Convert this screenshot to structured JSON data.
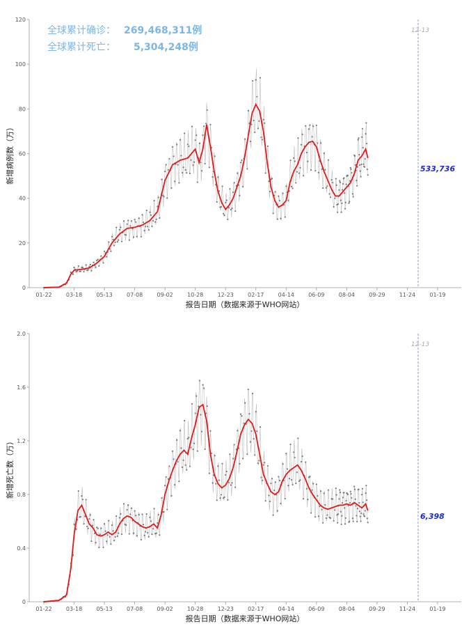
{
  "summary": {
    "confirmed_label": "全球累计确诊：",
    "confirmed_value": "269,468,311例",
    "deaths_label": "全球累计死亡：",
    "deaths_value": "5,304,248例"
  },
  "chart_data": [
    {
      "type": "line",
      "name": "cases",
      "ylabel": "新增病例数（万）",
      "xlabel": "报告日期（数据来源于WHO网站）",
      "ylim": [
        0,
        120
      ],
      "yticks": [
        "0",
        "20",
        "40",
        "60",
        "80",
        "100",
        "120"
      ],
      "xticks": [
        "01-22",
        "03-18",
        "05-13",
        "07-08",
        "09-02",
        "10-28",
        "12-23",
        "02-17",
        "04-14",
        "06-09",
        "08-04",
        "09-29",
        "11-24",
        "01-19"
      ],
      "marker_date": "12-13",
      "end_value_label": "533,736",
      "end_value": 53.37,
      "smooth_points": [
        [
          0,
          0
        ],
        [
          28,
          0.2
        ],
        [
          42,
          2
        ],
        [
          50,
          6
        ],
        [
          56,
          7.8
        ],
        [
          70,
          8.2
        ],
        [
          84,
          8.8
        ],
        [
          98,
          11
        ],
        [
          112,
          14
        ],
        [
          126,
          20
        ],
        [
          140,
          24
        ],
        [
          154,
          26.5
        ],
        [
          168,
          27
        ],
        [
          182,
          28
        ],
        [
          196,
          30
        ],
        [
          210,
          34
        ],
        [
          224,
          48
        ],
        [
          238,
          55
        ],
        [
          252,
          57
        ],
        [
          266,
          58
        ],
        [
          273,
          60
        ],
        [
          280,
          62
        ],
        [
          287,
          56
        ],
        [
          294,
          62
        ],
        [
          301,
          73
        ],
        [
          308,
          63
        ],
        [
          315,
          52
        ],
        [
          322,
          43
        ],
        [
          329,
          38
        ],
        [
          336,
          35
        ],
        [
          343,
          37
        ],
        [
          350,
          40
        ],
        [
          357,
          45
        ],
        [
          364,
          50
        ],
        [
          371,
          58
        ],
        [
          378,
          68
        ],
        [
          385,
          78
        ],
        [
          392,
          82
        ],
        [
          399,
          79
        ],
        [
          406,
          70
        ],
        [
          413,
          56
        ],
        [
          420,
          45
        ],
        [
          427,
          39
        ],
        [
          434,
          36
        ],
        [
          441,
          37
        ],
        [
          448,
          39
        ],
        [
          455,
          47
        ],
        [
          462,
          52
        ],
        [
          469,
          55
        ],
        [
          476,
          60
        ],
        [
          483,
          63
        ],
        [
          490,
          65
        ],
        [
          497,
          65.5
        ],
        [
          504,
          63
        ],
        [
          511,
          57
        ],
        [
          518,
          52
        ],
        [
          525,
          48
        ],
        [
          532,
          44
        ],
        [
          539,
          41
        ],
        [
          546,
          41
        ],
        [
          553,
          43
        ],
        [
          560,
          45
        ],
        [
          567,
          47
        ],
        [
          574,
          51
        ],
        [
          581,
          57
        ],
        [
          588,
          59
        ],
        [
          595,
          62
        ],
        [
          599,
          58
        ]
      ]
    },
    {
      "type": "line",
      "name": "deaths",
      "ylabel": "新增死亡数（万）",
      "xlabel": "报告日期（数据来源于WHO网站）",
      "ylim": [
        0,
        2.0
      ],
      "yticks": [
        "0",
        "0.4",
        "0.8",
        "1.2",
        "1.6",
        "2.0"
      ],
      "xticks": [
        "01-22",
        "03-18",
        "05-13",
        "07-08",
        "09-02",
        "10-28",
        "12-23",
        "02-17",
        "04-14",
        "06-09",
        "08-04",
        "09-29",
        "11-24",
        "01-19"
      ],
      "marker_date": "12-13",
      "end_value_label": "6,398",
      "end_value": 0.64,
      "smooth_points": [
        [
          0,
          0
        ],
        [
          28,
          0.01
        ],
        [
          42,
          0.05
        ],
        [
          50,
          0.25
        ],
        [
          56,
          0.5
        ],
        [
          63,
          0.68
        ],
        [
          70,
          0.72
        ],
        [
          77,
          0.65
        ],
        [
          84,
          0.58
        ],
        [
          91,
          0.55
        ],
        [
          98,
          0.5
        ],
        [
          105,
          0.49
        ],
        [
          112,
          0.5
        ],
        [
          119,
          0.52
        ],
        [
          126,
          0.5
        ],
        [
          133,
          0.52
        ],
        [
          140,
          0.58
        ],
        [
          147,
          0.62
        ],
        [
          154,
          0.64
        ],
        [
          161,
          0.63
        ],
        [
          168,
          0.6
        ],
        [
          175,
          0.58
        ],
        [
          182,
          0.56
        ],
        [
          189,
          0.55
        ],
        [
          196,
          0.56
        ],
        [
          203,
          0.58
        ],
        [
          210,
          0.55
        ],
        [
          217,
          0.65
        ],
        [
          224,
          0.8
        ],
        [
          231,
          0.9
        ],
        [
          238,
          0.98
        ],
        [
          245,
          1.05
        ],
        [
          252,
          1.1
        ],
        [
          259,
          1.13
        ],
        [
          266,
          1.1
        ],
        [
          273,
          1.22
        ],
        [
          280,
          1.32
        ],
        [
          287,
          1.45
        ],
        [
          294,
          1.47
        ],
        [
          301,
          1.35
        ],
        [
          308,
          1.1
        ],
        [
          315,
          0.95
        ],
        [
          322,
          0.88
        ],
        [
          329,
          0.85
        ],
        [
          336,
          0.87
        ],
        [
          343,
          0.92
        ],
        [
          350,
          1.0
        ],
        [
          357,
          1.12
        ],
        [
          364,
          1.25
        ],
        [
          371,
          1.32
        ],
        [
          378,
          1.36
        ],
        [
          385,
          1.33
        ],
        [
          392,
          1.25
        ],
        [
          399,
          1.1
        ],
        [
          406,
          0.95
        ],
        [
          413,
          0.88
        ],
        [
          420,
          0.82
        ],
        [
          427,
          0.8
        ],
        [
          434,
          0.82
        ],
        [
          441,
          0.9
        ],
        [
          448,
          0.95
        ],
        [
          455,
          0.98
        ],
        [
          462,
          1.0
        ],
        [
          469,
          1.02
        ],
        [
          476,
          0.98
        ],
        [
          483,
          0.92
        ],
        [
          490,
          0.85
        ],
        [
          497,
          0.8
        ],
        [
          504,
          0.76
        ],
        [
          511,
          0.72
        ],
        [
          518,
          0.7
        ],
        [
          525,
          0.69
        ],
        [
          532,
          0.7
        ],
        [
          539,
          0.71
        ],
        [
          546,
          0.72
        ],
        [
          553,
          0.72
        ],
        [
          560,
          0.73
        ],
        [
          567,
          0.72
        ],
        [
          574,
          0.74
        ],
        [
          581,
          0.72
        ],
        [
          588,
          0.7
        ],
        [
          595,
          0.73
        ],
        [
          599,
          0.68
        ]
      ]
    }
  ],
  "colors": {
    "trend": "#e01a1a",
    "raw": "#888888",
    "marker_line": "#6b7fd6",
    "end_value": "#1a2acc",
    "stat": "#7ab7e6"
  }
}
